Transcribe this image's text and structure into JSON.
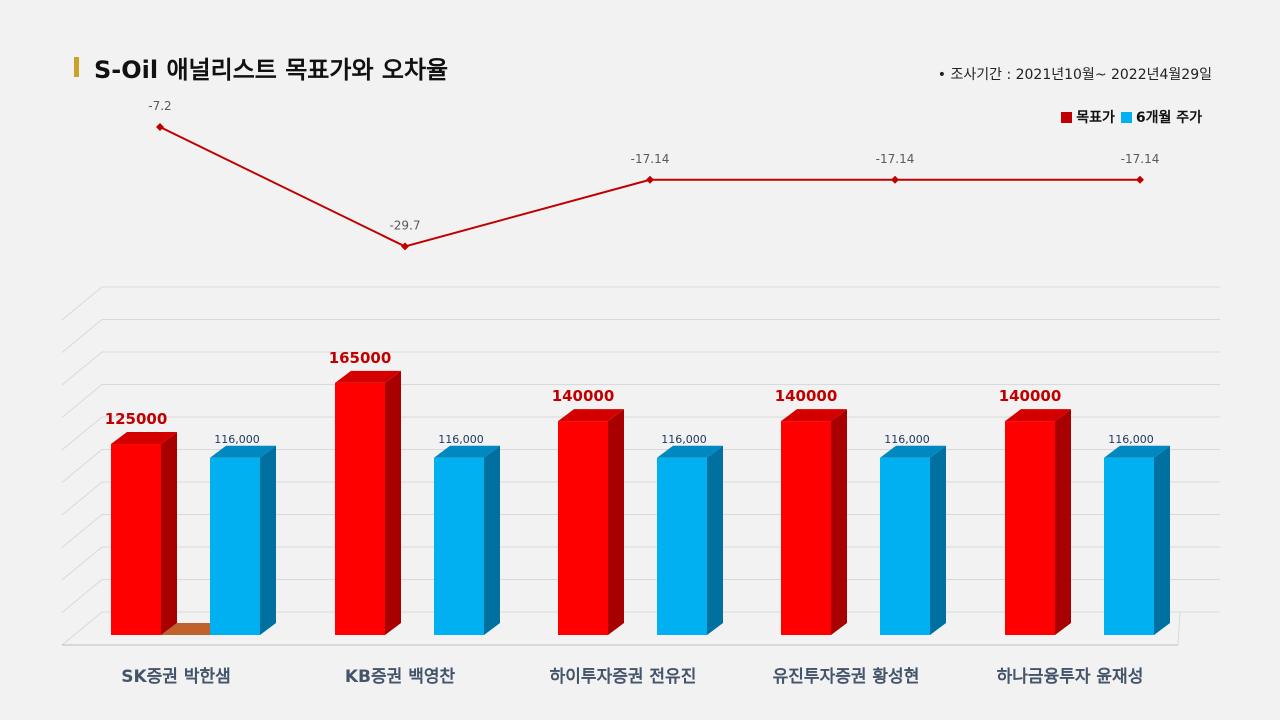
{
  "header": {
    "title": "S-Oil 애널리스트 목표가와 오차율",
    "period": "•  조사기간 : 2021년10월~ 2022년4월29일"
  },
  "legend": {
    "target_label": "목표가",
    "price_label": "6개월 주가"
  },
  "colors": {
    "target": "#ff0000",
    "price": "#00b0f0",
    "line": "#c00000",
    "accent": "#c9a227"
  },
  "chart_data": [
    {
      "type": "line",
      "categories": [
        "SK증권 박한샘",
        "KB증권 백영찬",
        "하이투자증권 전유진",
        "유진투자증권 황성현",
        "하나금융투자 윤재성"
      ],
      "values": [
        -7.2,
        -29.7,
        -17.14,
        -17.14,
        -17.14
      ],
      "value_labels": [
        "-7.2",
        "-29.7",
        "-17.14",
        "-17.14",
        "-17.14"
      ]
    },
    {
      "type": "bar",
      "categories": [
        "SK증권 박한샘",
        "KB증권 백영찬",
        "하이투자증권 전유진",
        "유진투자증권 황성현",
        "하나금융투자 윤재성"
      ],
      "series": [
        {
          "name": "목표가",
          "values": [
            125000,
            165000,
            140000,
            140000,
            140000
          ],
          "labels": [
            "125000",
            "165000",
            "140000",
            "140000",
            "140000"
          ]
        },
        {
          "name": "6개월 주가",
          "values": [
            116000,
            116000,
            116000,
            116000,
            116000
          ],
          "labels": [
            "116,000",
            "116,000",
            "116,000",
            "116,000",
            "116,000"
          ]
        }
      ]
    }
  ]
}
